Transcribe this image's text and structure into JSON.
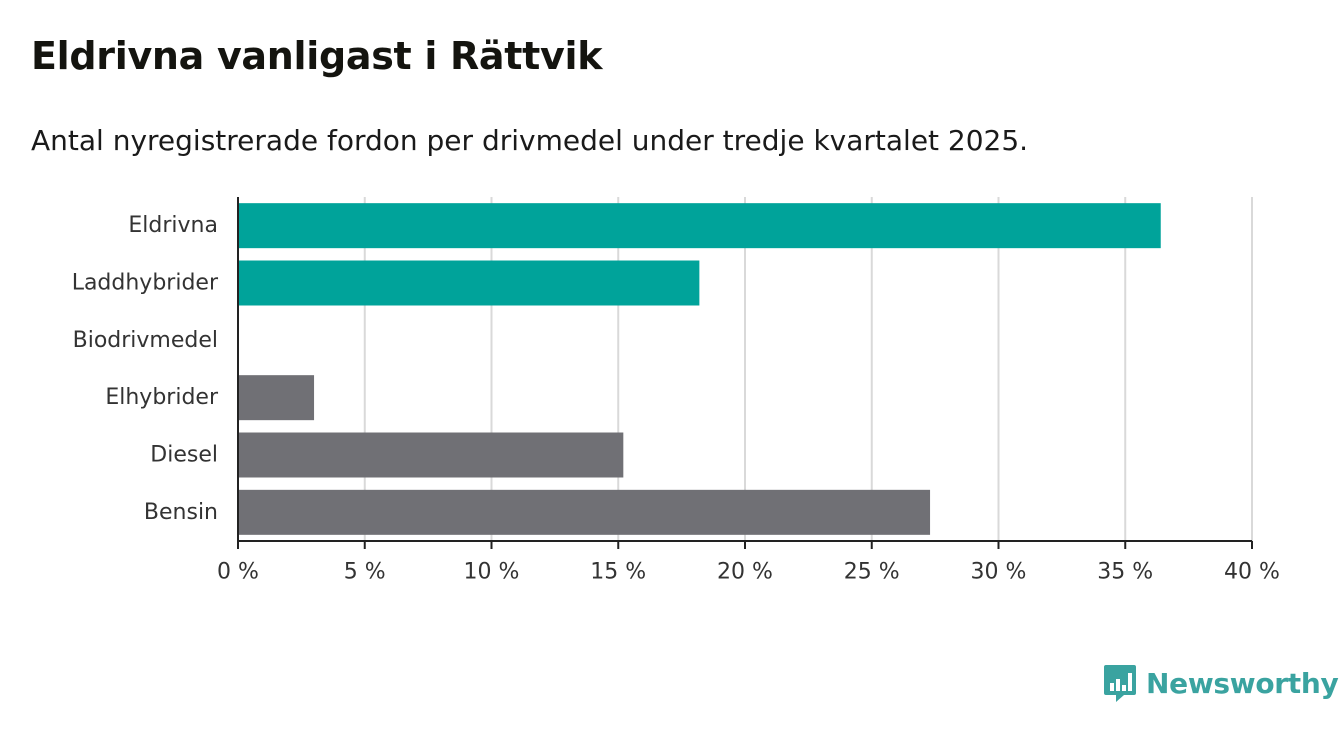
{
  "title": "Eldrivna vanligast i Rättvik",
  "subtitle": "Antal nyregistrerade fordon per drivmedel under tredje kvartalet 2025.",
  "brand": {
    "name": "Newsworthy",
    "color": "#3aa3a0",
    "icon": "bar-chart-bubble-icon"
  },
  "colors": {
    "highlight": "#00a39a",
    "other": "#707075",
    "grid": "#d9d9d9",
    "axis": "#222222"
  },
  "chart_data": {
    "type": "bar",
    "orientation": "horizontal",
    "title": "Eldrivna vanligast i Rättvik",
    "subtitle": "Antal nyregistrerade fordon per drivmedel under tredje kvartalet 2025.",
    "categories": [
      "Eldrivna",
      "Laddhybrider",
      "Biodrivmedel",
      "Elhybrider",
      "Diesel",
      "Bensin"
    ],
    "values": [
      36.4,
      18.2,
      0,
      3.0,
      15.2,
      27.3
    ],
    "highlighted": [
      true,
      true,
      true,
      false,
      false,
      false
    ],
    "xlim": [
      0,
      40
    ],
    "xticks": [
      0,
      5,
      10,
      15,
      20,
      25,
      30,
      35,
      40
    ],
    "xtick_labels": [
      "0 %",
      "5 %",
      "10 %",
      "15 %",
      "20 %",
      "25 %",
      "30 %",
      "35 %",
      "40 %"
    ],
    "xlabel": "",
    "ylabel": "",
    "grid": true
  }
}
